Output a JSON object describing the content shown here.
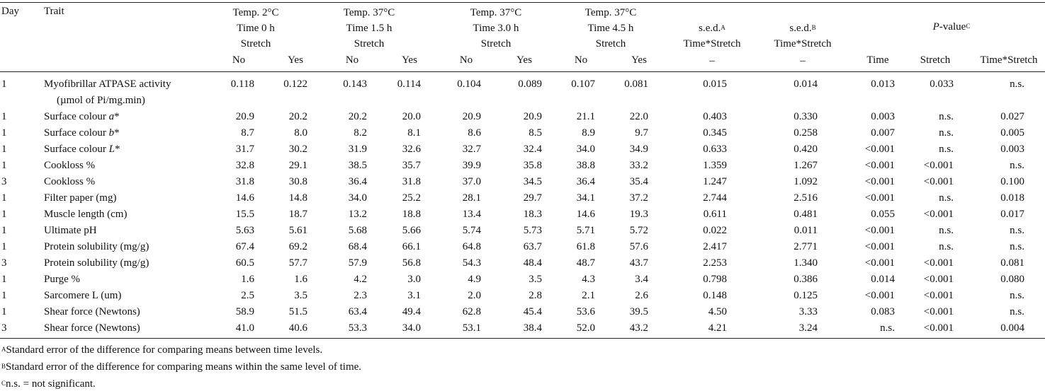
{
  "header": {
    "day": "Day",
    "trait": "Trait",
    "groups": [
      {
        "line1": "Temp. 2°C",
        "line2": "Time 0 h",
        "line3": "Stretch"
      },
      {
        "line1": "Temp. 37°C",
        "line2": "Time 1.5 h",
        "line3": "Stretch"
      },
      {
        "line1": "Temp. 37°C",
        "line2": "Time 3.0 h",
        "line3": "Stretch"
      },
      {
        "line1": "Temp. 37°C",
        "line2": "Time 4.5 h",
        "line3": "Stretch"
      }
    ],
    "no": "No",
    "yes": "Yes",
    "sedA": {
      "label": "s.e.d.",
      "sup": "A",
      "sub": "Time*Stretch",
      "dash": "–"
    },
    "sedB": {
      "label": "s.e.d.",
      "sup": "B",
      "sub": "Time*Stretch",
      "dash": "–"
    },
    "pvalue": {
      "italic": "P",
      "rest": "-value",
      "sup": "C"
    },
    "p_time": "Time",
    "p_stretch": "Stretch",
    "p_interaction": "Time*Stretch"
  },
  "rows": [
    {
      "day": "1",
      "trait": "Myofibrillar ATPASE activity",
      "trait2": "(µmol of Pi/mg.min)",
      "vals": [
        "0.118",
        "0.122",
        "0.143",
        "0.114",
        "0.104",
        "0.089",
        "0.107",
        "0.081"
      ],
      "sedA": "0.015",
      "sedB": "0.014",
      "pT": "0.013",
      "pS": "0.033",
      "pTS": "n.s."
    },
    {
      "day": "1",
      "trait": "Surface colour ",
      "trait_it": "a",
      "trait_post": "*",
      "vals": [
        "20.9",
        "20.2",
        "20.2",
        "20.0",
        "20.9",
        "20.9",
        "21.1",
        "22.0"
      ],
      "sedA": "0.403",
      "sedB": "0.330",
      "pT": "0.003",
      "pS": "n.s.",
      "pTS": "0.027"
    },
    {
      "day": "1",
      "trait": "Surface colour ",
      "trait_it": "b",
      "trait_post": "*",
      "vals": [
        "8.7",
        "8.0",
        "8.2",
        "8.1",
        "8.6",
        "8.5",
        "8.9",
        "9.7"
      ],
      "sedA": "0.345",
      "sedB": "0.258",
      "pT": "0.007",
      "pS": "n.s.",
      "pTS": "0.005"
    },
    {
      "day": "1",
      "trait": "Surface colour ",
      "trait_it": "L",
      "trait_post": "*",
      "vals": [
        "31.7",
        "30.2",
        "31.9",
        "32.6",
        "32.7",
        "32.4",
        "34.0",
        "34.9"
      ],
      "sedA": "0.633",
      "sedB": "0.420",
      "pT": "<0.001",
      "pS": "n.s.",
      "pTS": "0.003"
    },
    {
      "day": "1",
      "trait": "Cookloss %",
      "vals": [
        "32.8",
        "29.1",
        "38.5",
        "35.7",
        "39.9",
        "35.8",
        "38.8",
        "33.2"
      ],
      "sedA": "1.359",
      "sedB": "1.267",
      "pT": "<0.001",
      "pS": "<0.001",
      "pTS": "n.s."
    },
    {
      "day": "3",
      "trait": "Cookloss %",
      "vals": [
        "31.8",
        "30.8",
        "36.4",
        "31.8",
        "37.0",
        "34.5",
        "36.4",
        "35.4"
      ],
      "sedA": "1.247",
      "sedB": "1.092",
      "pT": "<0.001",
      "pS": "<0.001",
      "pTS": "0.100"
    },
    {
      "day": "1",
      "trait": "Filter paper (mg)",
      "vals": [
        "14.6",
        "14.8",
        "34.0",
        "25.2",
        "28.1",
        "29.7",
        "34.1",
        "37.2"
      ],
      "sedA": "2.744",
      "sedB": "2.516",
      "pT": "<0.001",
      "pS": "n.s.",
      "pTS": "0.018"
    },
    {
      "day": "1",
      "trait": "Muscle length (cm)",
      "vals": [
        "15.5",
        "18.7",
        "13.2",
        "18.8",
        "13.4",
        "18.3",
        "14.6",
        "19.3"
      ],
      "sedA": "0.611",
      "sedB": "0.481",
      "pT": "0.055",
      "pS": "<0.001",
      "pTS": "0.017"
    },
    {
      "day": "1",
      "trait": "Ultimate pH",
      "vals": [
        "5.63",
        "5.61",
        "5.68",
        "5.66",
        "5.74",
        "5.73",
        "5.71",
        "5.72"
      ],
      "sedA": "0.022",
      "sedB": "0.011",
      "pT": "<0.001",
      "pS": "n.s.",
      "pTS": "n.s."
    },
    {
      "day": "1",
      "trait": "Protein solubility (mg/g)",
      "vals": [
        "67.4",
        "69.2",
        "68.4",
        "66.1",
        "64.8",
        "63.7",
        "61.8",
        "57.6"
      ],
      "sedA": "2.417",
      "sedB": "2.771",
      "pT": "<0.001",
      "pS": "n.s.",
      "pTS": "n.s."
    },
    {
      "day": "3",
      "trait": "Protein solubility (mg/g)",
      "vals": [
        "60.5",
        "57.7",
        "57.9",
        "56.8",
        "54.3",
        "48.4",
        "48.7",
        "43.7"
      ],
      "sedA": "2.253",
      "sedB": "1.340",
      "pT": "<0.001",
      "pS": "<0.001",
      "pTS": "0.081"
    },
    {
      "day": "1",
      "trait": "Purge %",
      "vals": [
        "1.6",
        "1.6",
        "4.2",
        "3.0",
        "4.9",
        "3.5",
        "4.3",
        "3.4"
      ],
      "sedA": "0.798",
      "sedB": "0.386",
      "pT": "0.014",
      "pS": "<0.001",
      "pTS": "0.080"
    },
    {
      "day": "1",
      "trait": "Sarcomere L (um)",
      "vals": [
        "2.5",
        "3.5",
        "2.3",
        "3.1",
        "2.0",
        "2.8",
        "2.1",
        "2.6"
      ],
      "sedA": "0.148",
      "sedB": "0.125",
      "pT": "<0.001",
      "pS": "<0.001",
      "pTS": "n.s."
    },
    {
      "day": "1",
      "trait": "Shear force (Newtons)",
      "vals": [
        "58.9",
        "51.5",
        "63.4",
        "49.4",
        "62.8",
        "45.4",
        "53.6",
        "39.5"
      ],
      "sedA": "4.50",
      "sedB": "3.33",
      "pT": "0.083",
      "pS": "<0.001",
      "pTS": "n.s."
    },
    {
      "day": "3",
      "trait": "Shear force (Newtons)",
      "vals": [
        "41.0",
        "40.6",
        "53.3",
        "34.0",
        "53.1",
        "38.4",
        "52.0",
        "43.2"
      ],
      "sedA": "4.21",
      "sedB": "3.24",
      "pT": "n.s.",
      "pS": "<0.001",
      "pTS": "0.004"
    }
  ],
  "footnotes": [
    {
      "sup": "A",
      "text": "Standard error of the difference for comparing means between time levels."
    },
    {
      "sup": "B",
      "text": "Standard error of the difference for comparing means within the same level of time."
    },
    {
      "sup": "C",
      "text": "n.s. = not significant."
    }
  ]
}
